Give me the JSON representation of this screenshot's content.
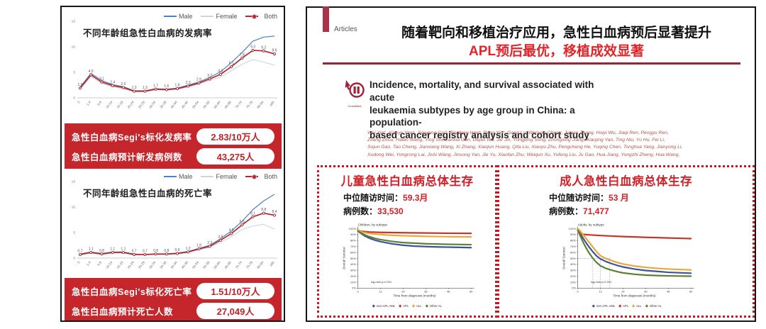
{
  "left_panel": {
    "incidence_stats": {
      "rows": [
        {
          "label": "急性白血病Segi's标化发病率",
          "value": "2.83/10万人"
        },
        {
          "label": "急性白血病预计新发病例数",
          "value": "43,275人"
        }
      ]
    },
    "mortality_stats": {
      "rows": [
        {
          "label": "急性白血病Segi's标化死亡率",
          "value": "1.51/10万人"
        },
        {
          "label": "急性白血病预计死亡人数",
          "value": "27,049人"
        }
      ]
    }
  },
  "right_panel": {
    "kicker": "Articles",
    "headline_line1": "随着靶向和移植治疗应用，急性白血病预后显著提升",
    "headline_line2": "APL预后最优，移植成效显著",
    "crossmark_label": "CrossMark",
    "paper_title_lines": [
      "Incidence, mortality, and survival associated with acute",
      "leukaemia subtypes by age group in China: a population-",
      "based cancer registry analysis and cohort study"
    ],
    "authors": [
      "Wei Yin*, Xiaoyu Yan*, Jiaoyang Cai*, Bingfeng Han*, Peng Yin*, Gang Lu, Wenyan Cheng, Jianan Zhang, Huiyi Wu, Jiaqi Ren, Pengyu Ren,",
      "Zifang Zhou, Haibo Wang, Ying Shi, Lanxia Gan, Depei Wu, Jie Jin, Yongping Song, Zhongxing Jiang, Xiaojing Yan, Ting Niu, Yu Hu, Fei Li,",
      "Sujun Gao, Tao Cheng, Jianxiang Wang, Xi Zhang, Xiaojun Huang, Qifa Liu, Xiaoyu Zhu, Pengcheng He, Yuqing Chen, Tonghua Yang, Jianyong Li,",
      "Xudong Wei, Yongrong Lai, Jishi Wang, Jinsong Yan, Jie Yu, Xiaofan Zhu, Weiqun Xu, Yufeng Liu, Ju Gao, Hua Jiang, Yongzhi Zheng, Hua Wang,"
    ],
    "children_box": {
      "title": "儿童急性白血病总体生存",
      "followup_label": "中位随访时间：",
      "followup_value": "59.3月",
      "cases_label": "病例数：",
      "cases_value": "33,530"
    },
    "adults_box": {
      "title": "成人急性白血病总体生存",
      "followup_label": "中位随访时间：",
      "followup_value": "53 月",
      "cases_label": "病例数：",
      "cases_value": "71,477"
    }
  },
  "chart_data": [
    {
      "kind": "age",
      "type": "line",
      "title": "不同年龄组急性白血病的发病率",
      "categories": [
        "0",
        "1-4",
        "5-9",
        "10-14",
        "15-19",
        "20-24",
        "25-29",
        "30-34",
        "35-39",
        "40-44",
        "45-49",
        "50-54",
        "55-59",
        "60-64",
        "65-69",
        "70-74",
        "75-79",
        "80-84",
        "≥85"
      ],
      "ylim": [
        0,
        15
      ],
      "yticks": [
        0,
        5,
        10,
        15
      ],
      "series": [
        {
          "name": "Male",
          "color": "#4f81bd",
          "width": 1.2,
          "z": 1,
          "values": [
            2.1,
            4.8,
            3.4,
            2.6,
            2.2,
            1.4,
            1.4,
            1.8,
            1.7,
            1.9,
            2.5,
            3.1,
            4.0,
            5.1,
            6.9,
            8.9,
            11.1,
            11.9,
            12.1
          ]
        },
        {
          "name": "Female",
          "color": "#ccd6de",
          "width": 1.1,
          "z": 0,
          "values": [
            1.7,
            4.2,
            2.8,
            2.2,
            1.8,
            1.2,
            1.2,
            1.6,
            1.5,
            1.7,
            2.1,
            2.7,
            3.4,
            4.1,
            5.3,
            6.6,
            7.5,
            7.0,
            6.4
          ]
        },
        {
          "name": "Both",
          "color": "#b02b30",
          "width": 1.7,
          "z": 2,
          "markers": true,
          "labels": true,
          "values": [
            1.9,
            4.5,
            3.1,
            2.4,
            2.0,
            1.3,
            1.3,
            1.7,
            1.6,
            1.8,
            2.3,
            2.9,
            3.7,
            4.6,
            6.1,
            7.8,
            9.3,
            9.2,
            8.6
          ]
        }
      ]
    },
    {
      "kind": "age",
      "type": "line",
      "title": "不同年龄组急性白血病的死亡率",
      "categories": [
        "0",
        "1-4",
        "5-9",
        "10-14",
        "15-19",
        "20-24",
        "25-29",
        "30-34",
        "35-39",
        "40-44",
        "45-49",
        "50-54",
        "55-59",
        "60-64",
        "65-69",
        "70-74",
        "75-79",
        "80-84",
        "≥85"
      ],
      "ylim": [
        0,
        15
      ],
      "yticks": [
        0,
        5,
        10,
        15
      ],
      "series": [
        {
          "name": "Male",
          "color": "#4f81bd",
          "width": 1.2,
          "z": 1,
          "values": [
            0.8,
            1.2,
            0.9,
            1.2,
            1.2,
            0.8,
            0.7,
            0.8,
            0.8,
            1.0,
            1.3,
            1.9,
            2.5,
            3.8,
            5.3,
            7.2,
            9.5,
            11.2,
            12.5
          ]
        },
        {
          "name": "Female",
          "color": "#ccd6de",
          "width": 1.1,
          "z": 0,
          "values": [
            0.6,
            1.0,
            0.7,
            1.0,
            1.0,
            0.6,
            0.6,
            0.7,
            0.7,
            0.8,
            1.1,
            1.6,
            2.1,
            3.1,
            4.2,
            5.6,
            6.3,
            6.6,
            5.7
          ]
        },
        {
          "name": "Both",
          "color": "#b02b30",
          "width": 1.7,
          "z": 2,
          "markers": true,
          "labels": true,
          "values": [
            0.7,
            1.1,
            0.8,
            1.1,
            1.1,
            0.7,
            0.7,
            0.8,
            0.8,
            0.9,
            1.2,
            1.8,
            2.3,
            3.5,
            4.8,
            6.5,
            8.1,
            8.8,
            8.4
          ]
        }
      ]
    },
    {
      "kind": "survival",
      "type": "line",
      "title": "Children, by subtype",
      "xlabel": "Time from diagnosis (months)",
      "ylabel": "Overall Survival",
      "xticks": [
        0,
        12,
        24,
        36,
        48,
        60
      ],
      "ylim": [
        0,
        100
      ],
      "annotation": "log-rank p<0.001",
      "series": [
        {
          "name": "non-APL AML",
          "color": "#3f519b",
          "points": [
            [
              0,
              96
            ],
            [
              2,
              91
            ],
            [
              4,
              87
            ],
            [
              6,
              84
            ],
            [
              9,
              80.5
            ],
            [
              12,
              78
            ],
            [
              18,
              74.5
            ],
            [
              24,
              72
            ],
            [
              30,
              70.5
            ],
            [
              36,
              69.8
            ],
            [
              42,
              69.2
            ],
            [
              48,
              68.8
            ],
            [
              54,
              68.4
            ],
            [
              60,
              68
            ]
          ]
        },
        {
          "name": "APL",
          "color": "#c63527",
          "points": [
            [
              0,
              97
            ],
            [
              2,
              95.5
            ],
            [
              4,
              94.8
            ],
            [
              6,
              94.3
            ],
            [
              12,
              93.6
            ],
            [
              24,
              93
            ],
            [
              36,
              92.6
            ],
            [
              48,
              92.2
            ],
            [
              60,
              92
            ]
          ]
        },
        {
          "name": "ALL",
          "color": "#e9a83a",
          "points": [
            [
              0,
              98
            ],
            [
              2,
              94.5
            ],
            [
              4,
              93
            ],
            [
              6,
              91.8
            ],
            [
              12,
              90
            ],
            [
              18,
              88.8
            ],
            [
              24,
              88
            ],
            [
              36,
              87
            ],
            [
              48,
              86.4
            ],
            [
              60,
              86
            ]
          ]
        },
        {
          "name": "Other AL",
          "color": "#5c8033",
          "points": [
            [
              0,
              96
            ],
            [
              2,
              92
            ],
            [
              4,
              89
            ],
            [
              6,
              86.5
            ],
            [
              9,
              83.5
            ],
            [
              12,
              81.5
            ],
            [
              18,
              78.5
            ],
            [
              24,
              76.5
            ],
            [
              36,
              74.5
            ],
            [
              48,
              73.6
            ],
            [
              60,
              73
            ]
          ]
        }
      ]
    },
    {
      "kind": "survival",
      "type": "line",
      "title": "Adults, by subtype",
      "xlabel": "Time from diagnosis (months)",
      "ylabel": "Overall Survival",
      "xticks": [
        0,
        12,
        24,
        36,
        48,
        60
      ],
      "ylim": [
        0,
        100
      ],
      "annotation": "log-rank p<0.001",
      "refs": {
        "y": 50,
        "x": [
          8,
          12,
          17
        ]
      },
      "series": [
        {
          "name": "non-APL AML",
          "color": "#3f519b",
          "points": [
            [
              0,
              98
            ],
            [
              1,
              93
            ],
            [
              2,
              88
            ],
            [
              3,
              83
            ],
            [
              4,
              78
            ],
            [
              6,
              69
            ],
            [
              8,
              61
            ],
            [
              10,
              54
            ],
            [
              12,
              49
            ],
            [
              15,
              44.5
            ],
            [
              18,
              41
            ],
            [
              21,
              38
            ],
            [
              24,
              35.5
            ],
            [
              30,
              32
            ],
            [
              36,
              29.5
            ],
            [
              42,
              28
            ],
            [
              48,
              26.5
            ],
            [
              54,
              25.7
            ],
            [
              60,
              25
            ]
          ]
        },
        {
          "name": "APL",
          "color": "#c63527",
          "points": [
            [
              0,
              97
            ],
            [
              1,
              91.5
            ],
            [
              2,
              90.5
            ],
            [
              6,
              89.5
            ],
            [
              12,
              88.3
            ],
            [
              18,
              87.4
            ],
            [
              24,
              86.6
            ],
            [
              30,
              86
            ],
            [
              36,
              85.3
            ],
            [
              42,
              84.8
            ],
            [
              48,
              84.2
            ],
            [
              54,
              83.7
            ],
            [
              60,
              83.2
            ]
          ]
        },
        {
          "name": "ALL",
          "color": "#e9a83a",
          "points": [
            [
              0,
              100
            ],
            [
              1,
              97
            ],
            [
              2,
              93
            ],
            [
              3,
              89
            ],
            [
              4,
              85
            ],
            [
              6,
              77
            ],
            [
              8,
              69
            ],
            [
              10,
              61
            ],
            [
              12,
              54.5
            ],
            [
              15,
              49.5
            ],
            [
              18,
              46
            ],
            [
              21,
              43
            ],
            [
              24,
              40.5
            ],
            [
              30,
              37
            ],
            [
              36,
              34.8
            ],
            [
              42,
              33.2
            ],
            [
              48,
              32
            ],
            [
              54,
              31.2
            ],
            [
              60,
              30.5
            ]
          ]
        },
        {
          "name": "Other AL",
          "color": "#5c8033",
          "points": [
            [
              0,
              97
            ],
            [
              1,
              90
            ],
            [
              2,
              83
            ],
            [
              3,
              76
            ],
            [
              4,
              70
            ],
            [
              6,
              59
            ],
            [
              8,
              50
            ],
            [
              10,
              43
            ],
            [
              12,
              37.5
            ],
            [
              15,
              33
            ],
            [
              18,
              30
            ],
            [
              21,
              27.5
            ],
            [
              24,
              25.5
            ],
            [
              30,
              23.2
            ],
            [
              36,
              21.8
            ],
            [
              42,
              21
            ],
            [
              48,
              20.5
            ],
            [
              54,
              20.2
            ],
            [
              60,
              20
            ]
          ]
        }
      ]
    }
  ]
}
